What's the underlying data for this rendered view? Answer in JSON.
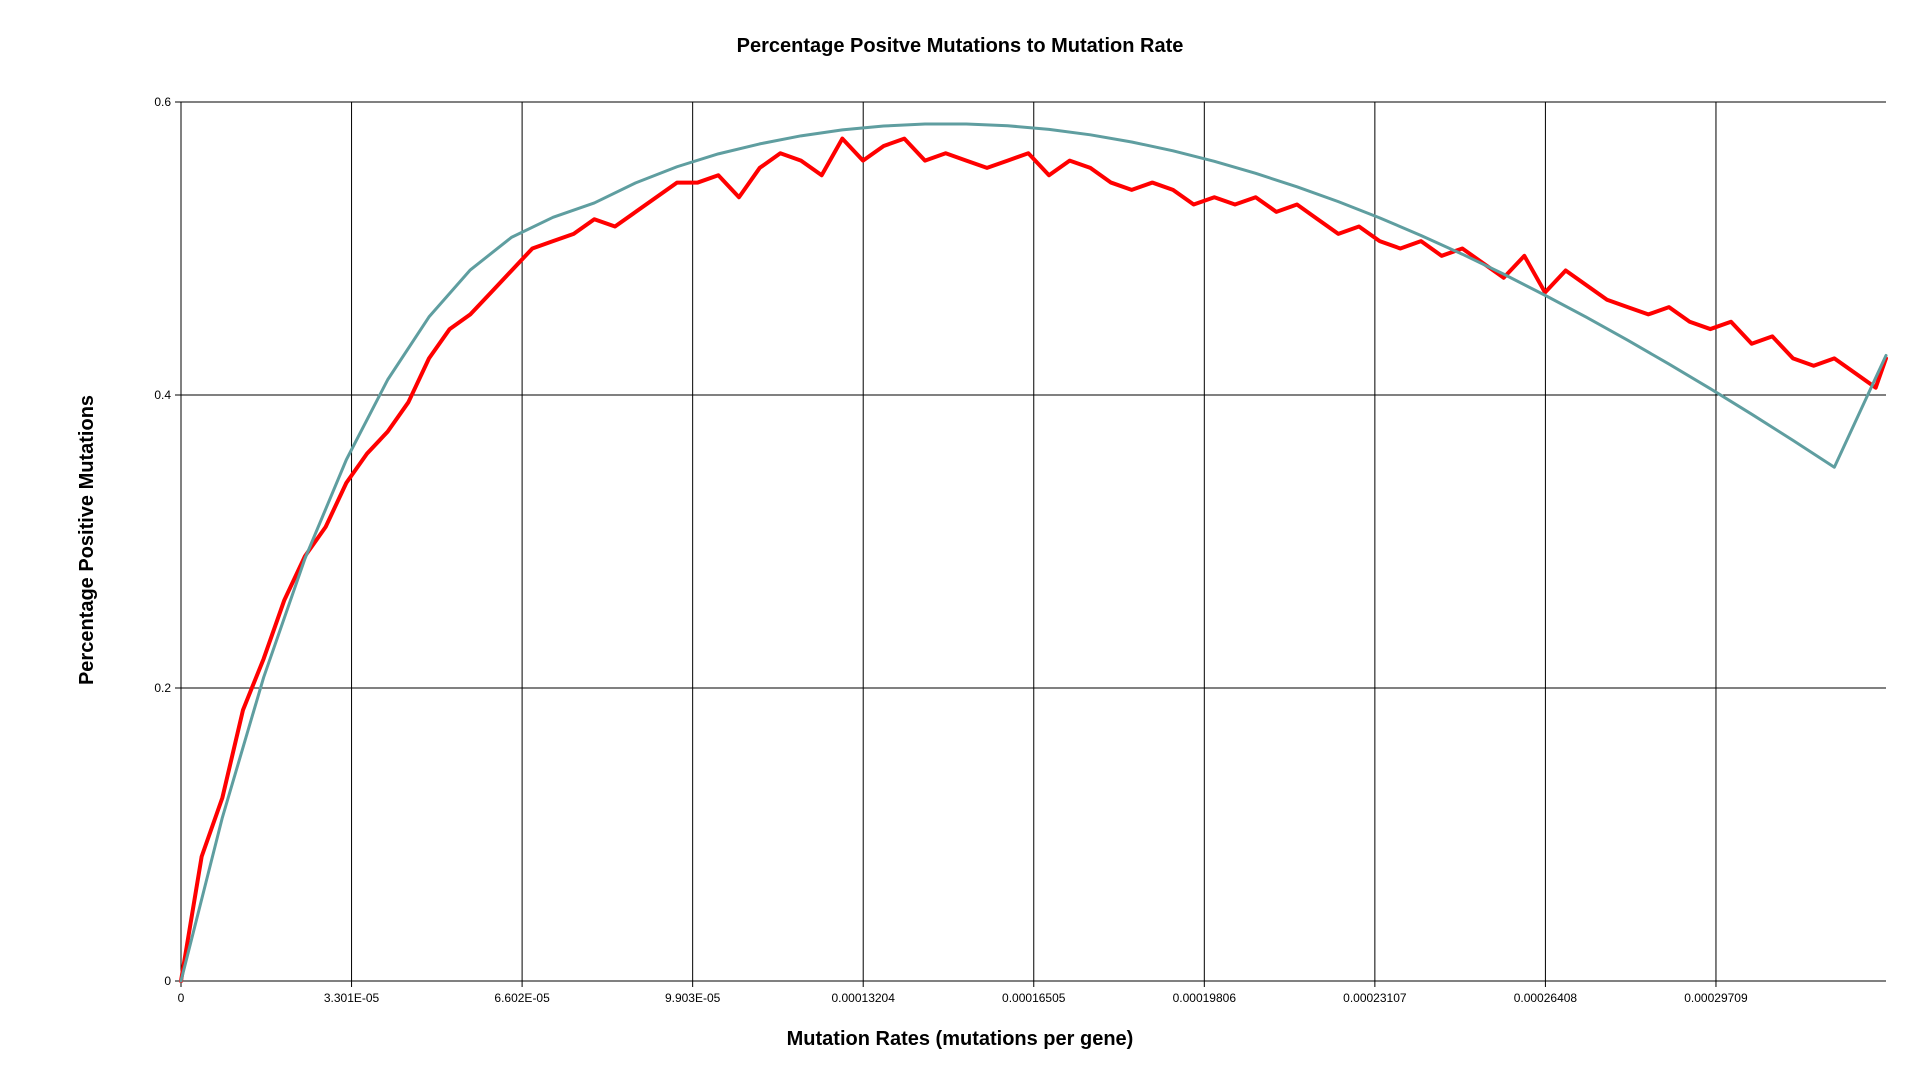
{
  "chart_data": {
    "type": "line",
    "title": "Percentage Positve Mutations to Mutation Rate",
    "xlabel": "Mutation Rates (mutations per gene)",
    "ylabel": "Percentage Positive Mutations",
    "xlim": [
      0,
      0.00033
    ],
    "ylim": [
      0,
      0.6
    ],
    "grid": true,
    "legend": "none",
    "x_ticks": [
      0,
      3.301e-05,
      6.602e-05,
      9.903e-05,
      0.00013204,
      0.00016505,
      0.00019806,
      0.00023107,
      0.00026408,
      0.00029709
    ],
    "x_tick_labels": [
      "0",
      "3.301E-05",
      "6.602E-05",
      "9.903E-05",
      "0.00013204",
      "0.00016505",
      "0.00019806",
      "0.00023107",
      "0.00026408",
      "0.00029709"
    ],
    "y_ticks": [
      0,
      0.2,
      0.4,
      0.6
    ],
    "y_tick_labels": [
      "0",
      "0.2",
      "0.4",
      "0.6"
    ],
    "series": [
      {
        "color": "#ff0000",
        "x": [
          0,
          4e-06,
          8e-06,
          1.2e-05,
          1.6e-05,
          2e-05,
          2.4e-05,
          2.8e-05,
          3.2e-05,
          3.6e-05,
          4e-05,
          4.4e-05,
          4.8e-05,
          5.2e-05,
          5.6e-05,
          6e-05,
          6.4e-05,
          6.8e-05,
          7.2e-05,
          7.6e-05,
          8e-05,
          8.4e-05,
          8.8e-05,
          9.2e-05,
          9.6e-05,
          0.0001,
          0.000104,
          0.000108,
          0.000112,
          0.000116,
          0.00012,
          0.000124,
          0.000128,
          0.000132,
          0.000136,
          0.00014,
          0.000144,
          0.000148,
          0.000152,
          0.000156,
          0.00016,
          0.000164,
          0.000168,
          0.000172,
          0.000176,
          0.00018,
          0.000184,
          0.000188,
          0.000192,
          0.000196,
          0.0002,
          0.000204,
          0.000208,
          0.000212,
          0.000216,
          0.00022,
          0.000224,
          0.000228,
          0.000232,
          0.000236,
          0.00024,
          0.000244,
          0.000248,
          0.000252,
          0.000256,
          0.00026,
          0.000264,
          0.000268,
          0.000272,
          0.000276,
          0.00028,
          0.000284,
          0.000288,
          0.000292,
          0.000296,
          0.0003,
          0.000304,
          0.000308,
          0.000312,
          0.000316,
          0.00032,
          0.000324,
          0.000328,
          0.00033
        ],
        "y": [
          0,
          0.085,
          0.125,
          0.185,
          0.22,
          0.26,
          0.29,
          0.31,
          0.34,
          0.36,
          0.375,
          0.395,
          0.425,
          0.445,
          0.455,
          0.47,
          0.485,
          0.5,
          0.505,
          0.51,
          0.52,
          0.515,
          0.525,
          0.535,
          0.545,
          0.545,
          0.55,
          0.535,
          0.555,
          0.565,
          0.56,
          0.55,
          0.575,
          0.56,
          0.57,
          0.575,
          0.56,
          0.565,
          0.56,
          0.555,
          0.56,
          0.565,
          0.55,
          0.56,
          0.555,
          0.545,
          0.54,
          0.545,
          0.54,
          0.53,
          0.535,
          0.53,
          0.535,
          0.525,
          0.53,
          0.52,
          0.51,
          0.515,
          0.505,
          0.5,
          0.505,
          0.495,
          0.5,
          0.49,
          0.48,
          0.495,
          0.47,
          0.485,
          0.475,
          0.465,
          0.46,
          0.455,
          0.46,
          0.45,
          0.445,
          0.45,
          0.435,
          0.44,
          0.425,
          0.42,
          0.425,
          0.415,
          0.405,
          0.425
        ]
      },
      {
        "color": "#5f9ea0",
        "x": [
          0,
          8e-06,
          1.6e-05,
          2.4e-05,
          3.2e-05,
          4e-05,
          4.8e-05,
          5.6e-05,
          6.4e-05,
          7.2e-05,
          8e-05,
          8.8e-05,
          9.6e-05,
          0.000104,
          0.000112,
          0.00012,
          0.000128,
          0.000136,
          0.000144,
          0.000152,
          0.00016,
          0.000168,
          0.000176,
          0.000184,
          0.000192,
          0.0002,
          0.000208,
          0.000216,
          0.000224,
          0.000232,
          0.00024,
          0.000248,
          0.000256,
          0.000264,
          0.000272,
          0.00028,
          0.000288,
          0.000296,
          0.000304,
          0.000312,
          0.00032,
          0.00033
        ],
        "y": [
          0,
          0.1115,
          0.2073,
          0.2884,
          0.3558,
          0.4104,
          0.4533,
          0.4854,
          0.5077,
          0.5213,
          0.5311,
          0.5448,
          0.5558,
          0.5646,
          0.5714,
          0.5769,
          0.581,
          0.5836,
          0.585,
          0.585,
          0.5838,
          0.5813,
          0.5776,
          0.5727,
          0.5667,
          0.5595,
          0.5513,
          0.5421,
          0.532,
          0.5209,
          0.5089,
          0.4961,
          0.4825,
          0.4681,
          0.4531,
          0.4374,
          0.4211,
          0.4043,
          0.3869,
          0.369,
          0.3507,
          0.427
        ]
      }
    ]
  }
}
